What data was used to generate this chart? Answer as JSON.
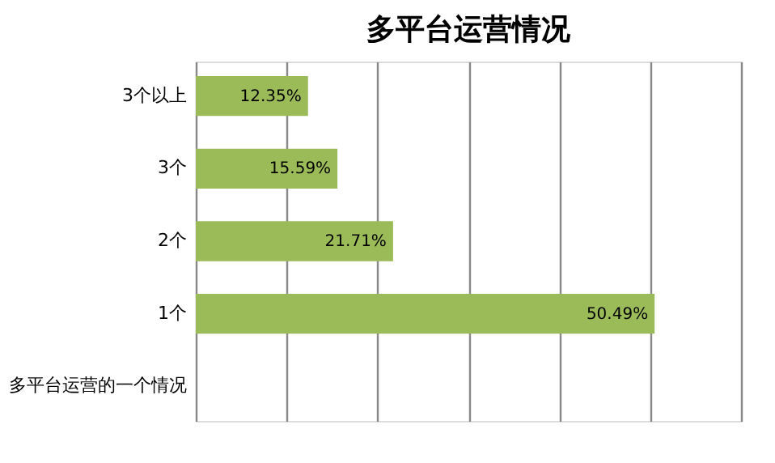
{
  "chart_data": {
    "type": "bar",
    "orientation": "horizontal",
    "title": "多平台运营情况",
    "categories": [
      "3个以上",
      "3个",
      "2个",
      "1个",
      "多平台运营的一个情况"
    ],
    "values": [
      12.35,
      15.59,
      21.71,
      50.49,
      null
    ],
    "value_labels": [
      "12.35%",
      "15.59%",
      "21.71%",
      "50.49%",
      null
    ],
    "color": "#9bbb59",
    "xlim": [
      0,
      60
    ],
    "xticks": [
      {
        "value": 0,
        "label": null
      },
      {
        "value": 10,
        "label": null
      },
      {
        "value": 20,
        "label": null
      },
      {
        "value": 30,
        "label": null
      },
      {
        "value": 40,
        "label": null
      },
      {
        "value": 50,
        "label": null
      },
      {
        "value": 60,
        "label": null
      }
    ],
    "grid": "x",
    "tick_labels": "y"
  }
}
